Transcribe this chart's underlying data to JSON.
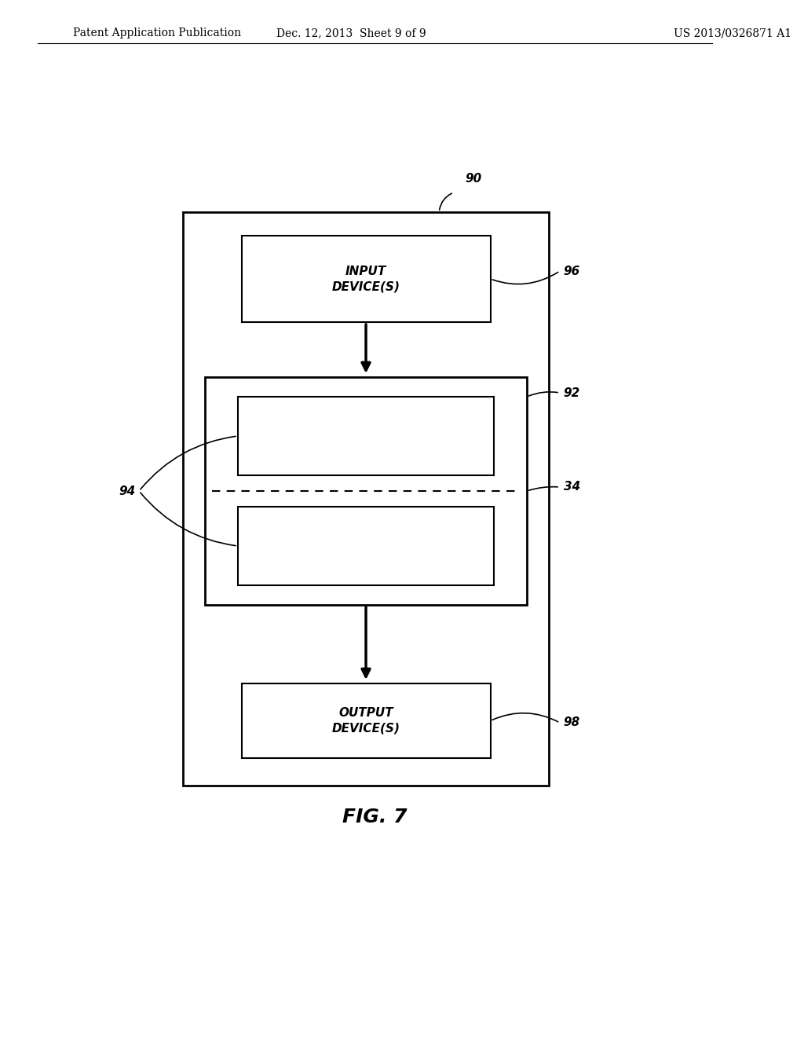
{
  "bg_color": "#ffffff",
  "text_color": "#000000",
  "header_left": "Patent Application Publication",
  "header_center": "Dec. 12, 2013  Sheet 9 of 9",
  "header_right": "US 2013/0326871 A1",
  "fig_label": "FIG. 7",
  "label_90": "90",
  "label_92": "92",
  "label_94": "94",
  "label_34": "34",
  "label_96": "96",
  "label_98": "98",
  "input_text": "INPUT\nDEVICE(S)",
  "output_text": "OUTPUT\nDEVICE(S)"
}
